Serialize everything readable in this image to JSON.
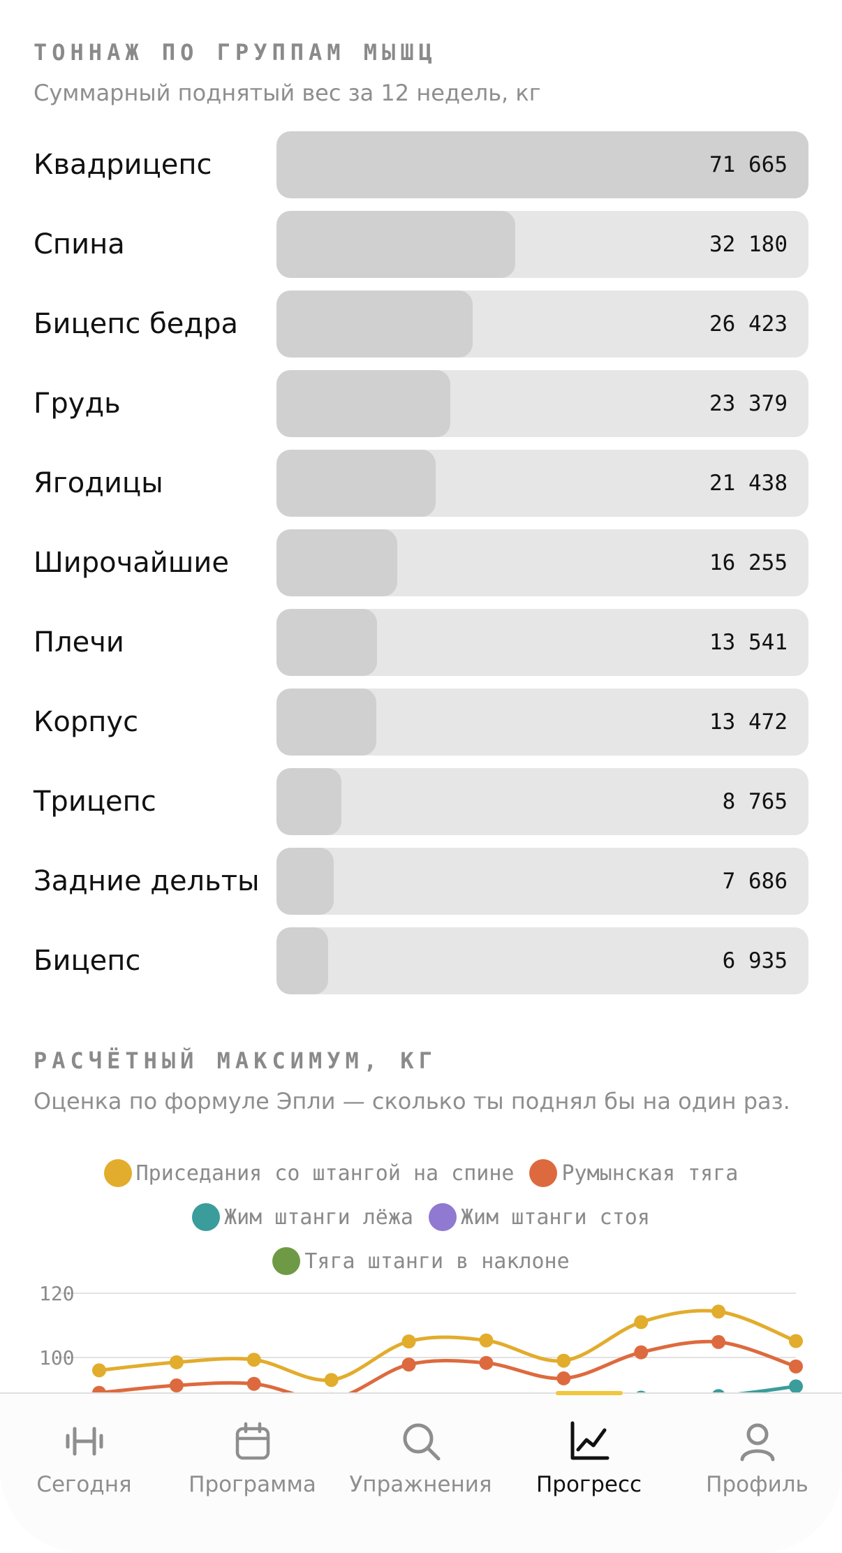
{
  "tonnage": {
    "title": "ТОННАЖ ПО ГРУППАМ МЫШЦ",
    "subtitle": "Суммарный поднятый вес за 12 недель, кг",
    "max": 71665,
    "rows": [
      {
        "label": "Квадрицепс",
        "value": 71665,
        "display": "71 665"
      },
      {
        "label": "Спина",
        "value": 32180,
        "display": "32 180"
      },
      {
        "label": "Бицепс бедра",
        "value": 26423,
        "display": "26 423"
      },
      {
        "label": "Грудь",
        "value": 23379,
        "display": "23 379"
      },
      {
        "label": "Ягодицы",
        "value": 21438,
        "display": "21 438"
      },
      {
        "label": "Широчайшие",
        "value": 16255,
        "display": "16 255"
      },
      {
        "label": "Плечи",
        "value": 13541,
        "display": "13 541"
      },
      {
        "label": "Корпус",
        "value": 13472,
        "display": "13 472"
      },
      {
        "label": "Трицепс",
        "value": 8765,
        "display": "8 765"
      },
      {
        "label": "Задние дельты",
        "value": 7686,
        "display": "7 686"
      },
      {
        "label": "Бицепс",
        "value": 6935,
        "display": "6 935"
      }
    ]
  },
  "onerm": {
    "title": "РАСЧЁТНЫЙ МАКСИМУМ, КГ",
    "subtitle": "Оценка по формуле Эпли — сколько ты поднял бы на один раз."
  },
  "chart_data": {
    "type": "line",
    "title": "РАСЧЁТНЫЙ МАКСИМУМ, КГ",
    "yticks": [
      "120",
      "100"
    ],
    "ylim": [
      80,
      120
    ],
    "grid": true,
    "legend_position": "top",
    "series": [
      {
        "name": "Приседания со штангой на спине",
        "color": "#e2ac2c",
        "values": [
          96,
          98.5,
          99.3,
          93,
          105,
          105.3,
          99,
          111,
          114.3,
          105.1
        ]
      },
      {
        "name": "Румынская тяга",
        "color": "#dd6a3e",
        "values": [
          89,
          91.3,
          91.8,
          87,
          97.8,
          98.3,
          93.5,
          101.6,
          104.8,
          97.2
        ]
      },
      {
        "name": "Жим штанги лёжа",
        "color": "#3b9c9c",
        "values": [
          null,
          null,
          null,
          null,
          null,
          null,
          null,
          87.5,
          88,
          91
        ]
      },
      {
        "name": "Жим штанги стоя",
        "color": "#8f79d1",
        "values": []
      },
      {
        "name": "Тяга штанги в наклоне",
        "color": "#6e9a45",
        "values": []
      }
    ]
  },
  "tabbar": {
    "accent": "#f0c63a",
    "tabs": [
      {
        "label": "Сегодня",
        "icon": "barbell-icon",
        "active": false
      },
      {
        "label": "Программа",
        "icon": "calendar-icon",
        "active": false
      },
      {
        "label": "Упражнения",
        "icon": "search-icon",
        "active": false
      },
      {
        "label": "Прогресс",
        "icon": "chart-icon",
        "active": true
      },
      {
        "label": "Профиль",
        "icon": "profile-icon",
        "active": false
      }
    ]
  }
}
